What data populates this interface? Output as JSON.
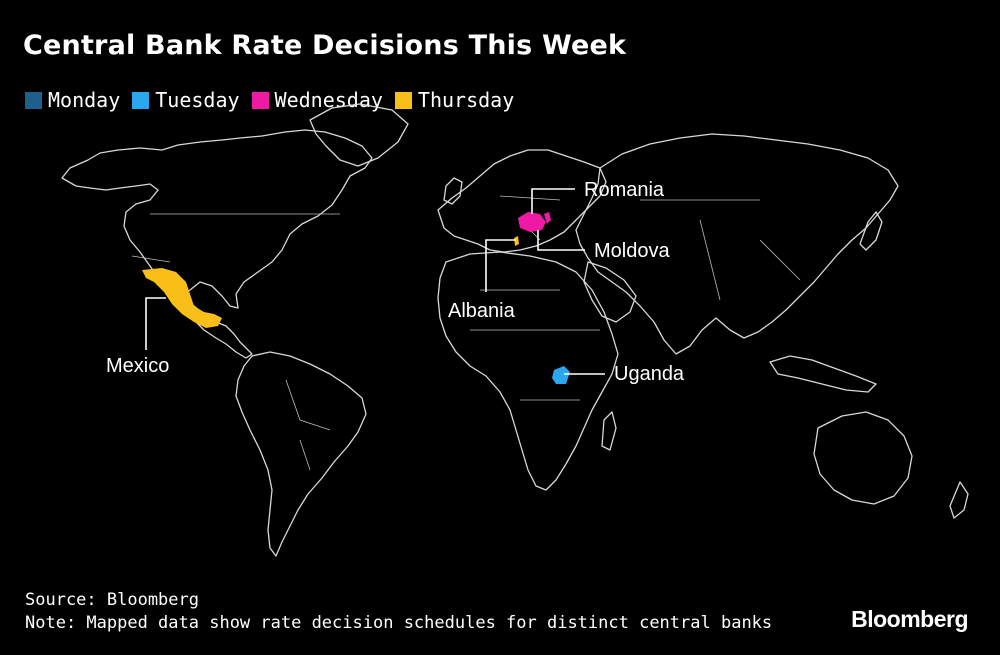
{
  "header": {
    "title": "Central Bank Rate Decisions This Week"
  },
  "legend": [
    {
      "label": "Monday",
      "color": "#1f5f8b"
    },
    {
      "label": "Tuesday",
      "color": "#29a8f0"
    },
    {
      "label": "Wednesday",
      "color": "#ee1aa3"
    },
    {
      "label": "Thursday",
      "color": "#f9bf18"
    }
  ],
  "countries": [
    {
      "name": "Romania",
      "day": "Wednesday",
      "color": "#ee1aa3"
    },
    {
      "name": "Moldova",
      "day": "Wednesday",
      "color": "#ee1aa3"
    },
    {
      "name": "Albania",
      "day": "Thursday",
      "color": "#f9bf18"
    },
    {
      "name": "Mexico",
      "day": "Thursday",
      "color": "#f9bf18"
    },
    {
      "name": "Uganda",
      "day": "Tuesday",
      "color": "#29a8f0"
    }
  ],
  "footer": {
    "source": "Source: Bloomberg",
    "note": "Note: Mapped data show rate decision schedules for distinct central banks"
  },
  "brand": "Bloomberg"
}
